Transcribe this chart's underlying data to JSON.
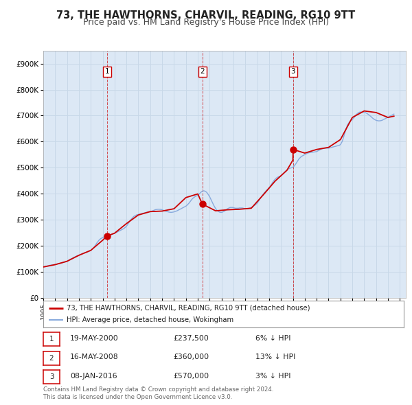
{
  "title": "73, THE HAWTHORNS, CHARVIL, READING, RG10 9TT",
  "subtitle": "Price paid vs. HM Land Registry's House Price Index (HPI)",
  "title_fontsize": 10.5,
  "subtitle_fontsize": 9,
  "background_color": "#ffffff",
  "plot_bg_color": "#dce8f5",
  "grid_color": "#c8d8e8",
  "xmin": 1995.0,
  "xmax": 2025.5,
  "ymin": 0,
  "ymax": 950000,
  "yticks": [
    0,
    100000,
    200000,
    300000,
    400000,
    500000,
    600000,
    700000,
    800000,
    900000
  ],
  "ytick_labels": [
    "£0",
    "£100K",
    "£200K",
    "£300K",
    "£400K",
    "£500K",
    "£600K",
    "£700K",
    "£800K",
    "£900K"
  ],
  "sale_color": "#cc0000",
  "hpi_color": "#88aadd",
  "sale_label": "73, THE HAWTHORNS, CHARVIL, READING, RG10 9TT (detached house)",
  "hpi_label": "HPI: Average price, detached house, Wokingham",
  "transactions": [
    {
      "num": 1,
      "date_str": "19-MAY-2000",
      "price": 237500,
      "price_str": "£237,500",
      "pct": "6%",
      "x": 2000.38
    },
    {
      "num": 2,
      "date_str": "16-MAY-2008",
      "price": 360000,
      "price_str": "£360,000",
      "pct": "13%",
      "x": 2008.38
    },
    {
      "num": 3,
      "date_str": "08-JAN-2016",
      "price": 570000,
      "price_str": "£570,000",
      "pct": "3%",
      "x": 2016.02
    }
  ],
  "footer_line1": "Contains HM Land Registry data © Crown copyright and database right 2024.",
  "footer_line2": "This data is licensed under the Open Government Licence v3.0.",
  "hpi_data_x": [
    1995.0,
    1995.083,
    1995.167,
    1995.25,
    1995.333,
    1995.417,
    1995.5,
    1995.583,
    1995.667,
    1995.75,
    1995.833,
    1995.917,
    1996.0,
    1996.083,
    1996.167,
    1996.25,
    1996.333,
    1996.417,
    1996.5,
    1996.583,
    1996.667,
    1996.75,
    1996.833,
    1996.917,
    1997.0,
    1997.083,
    1997.167,
    1997.25,
    1997.333,
    1997.417,
    1997.5,
    1997.583,
    1997.667,
    1997.75,
    1997.833,
    1997.917,
    1998.0,
    1998.083,
    1998.167,
    1998.25,
    1998.333,
    1998.417,
    1998.5,
    1998.583,
    1998.667,
    1998.75,
    1998.833,
    1998.917,
    1999.0,
    1999.083,
    1999.167,
    1999.25,
    1999.333,
    1999.417,
    1999.5,
    1999.583,
    1999.667,
    1999.75,
    1999.833,
    1999.917,
    2000.0,
    2000.083,
    2000.167,
    2000.25,
    2000.333,
    2000.417,
    2000.5,
    2000.583,
    2000.667,
    2000.75,
    2000.833,
    2000.917,
    2001.0,
    2001.083,
    2001.167,
    2001.25,
    2001.333,
    2001.417,
    2001.5,
    2001.583,
    2001.667,
    2001.75,
    2001.833,
    2001.917,
    2002.0,
    2002.083,
    2002.167,
    2002.25,
    2002.333,
    2002.417,
    2002.5,
    2002.583,
    2002.667,
    2002.75,
    2002.833,
    2002.917,
    2003.0,
    2003.083,
    2003.167,
    2003.25,
    2003.333,
    2003.417,
    2003.5,
    2003.583,
    2003.667,
    2003.75,
    2003.833,
    2003.917,
    2004.0,
    2004.083,
    2004.167,
    2004.25,
    2004.333,
    2004.417,
    2004.5,
    2004.583,
    2004.667,
    2004.75,
    2004.833,
    2004.917,
    2005.0,
    2005.083,
    2005.167,
    2005.25,
    2005.333,
    2005.417,
    2005.5,
    2005.583,
    2005.667,
    2005.75,
    2005.833,
    2005.917,
    2006.0,
    2006.083,
    2006.167,
    2006.25,
    2006.333,
    2006.417,
    2006.5,
    2006.583,
    2006.667,
    2006.75,
    2006.833,
    2006.917,
    2007.0,
    2007.083,
    2007.167,
    2007.25,
    2007.333,
    2007.417,
    2007.5,
    2007.583,
    2007.667,
    2007.75,
    2007.833,
    2007.917,
    2008.0,
    2008.083,
    2008.167,
    2008.25,
    2008.333,
    2008.417,
    2008.5,
    2008.583,
    2008.667,
    2008.75,
    2008.833,
    2008.917,
    2009.0,
    2009.083,
    2009.167,
    2009.25,
    2009.333,
    2009.417,
    2009.5,
    2009.583,
    2009.667,
    2009.75,
    2009.833,
    2009.917,
    2010.0,
    2010.083,
    2010.167,
    2010.25,
    2010.333,
    2010.417,
    2010.5,
    2010.583,
    2010.667,
    2010.75,
    2010.833,
    2010.917,
    2011.0,
    2011.083,
    2011.167,
    2011.25,
    2011.333,
    2011.417,
    2011.5,
    2011.583,
    2011.667,
    2011.75,
    2011.833,
    2011.917,
    2012.0,
    2012.083,
    2012.167,
    2012.25,
    2012.333,
    2012.417,
    2012.5,
    2012.583,
    2012.667,
    2012.75,
    2012.833,
    2012.917,
    2013.0,
    2013.083,
    2013.167,
    2013.25,
    2013.333,
    2013.417,
    2013.5,
    2013.583,
    2013.667,
    2013.75,
    2013.833,
    2013.917,
    2014.0,
    2014.083,
    2014.167,
    2014.25,
    2014.333,
    2014.417,
    2014.5,
    2014.583,
    2014.667,
    2014.75,
    2014.833,
    2014.917,
    2015.0,
    2015.083,
    2015.167,
    2015.25,
    2015.333,
    2015.417,
    2015.5,
    2015.583,
    2015.667,
    2015.75,
    2015.833,
    2015.917,
    2016.0,
    2016.083,
    2016.167,
    2016.25,
    2016.333,
    2016.417,
    2016.5,
    2016.583,
    2016.667,
    2016.75,
    2016.833,
    2016.917,
    2017.0,
    2017.083,
    2017.167,
    2017.25,
    2017.333,
    2017.417,
    2017.5,
    2017.583,
    2017.667,
    2017.75,
    2017.833,
    2017.917,
    2018.0,
    2018.083,
    2018.167,
    2018.25,
    2018.333,
    2018.417,
    2018.5,
    2018.583,
    2018.667,
    2018.75,
    2018.833,
    2018.917,
    2019.0,
    2019.083,
    2019.167,
    2019.25,
    2019.333,
    2019.417,
    2019.5,
    2019.583,
    2019.667,
    2019.75,
    2019.833,
    2019.917,
    2020.0,
    2020.083,
    2020.167,
    2020.25,
    2020.333,
    2020.417,
    2020.5,
    2020.583,
    2020.667,
    2020.75,
    2020.833,
    2020.917,
    2021.0,
    2021.083,
    2021.167,
    2021.25,
    2021.333,
    2021.417,
    2021.5,
    2021.583,
    2021.667,
    2021.75,
    2021.833,
    2021.917,
    2022.0,
    2022.083,
    2022.167,
    2022.25,
    2022.333,
    2022.417,
    2022.5,
    2022.583,
    2022.667,
    2022.75,
    2022.833,
    2022.917,
    2023.0,
    2023.083,
    2023.167,
    2023.25,
    2023.333,
    2023.417,
    2023.5,
    2023.583,
    2023.667,
    2023.75,
    2023.833,
    2023.917,
    2024.0,
    2024.083,
    2024.167,
    2024.25,
    2024.333,
    2024.417,
    2024.5
  ],
  "hpi_data_y": [
    118000,
    119000,
    120000,
    121000,
    122000,
    123000,
    124000,
    125000,
    125500,
    126000,
    126500,
    127000,
    127500,
    128500,
    129500,
    130500,
    131500,
    132500,
    133500,
    134000,
    135000,
    136000,
    137000,
    138500,
    140000,
    142000,
    144500,
    147000,
    149500,
    151000,
    153000,
    155000,
    157000,
    159000,
    160500,
    161500,
    163000,
    165000,
    167000,
    168500,
    170000,
    171500,
    173000,
    174000,
    175000,
    176500,
    178000,
    180000,
    182000,
    185000,
    189000,
    193000,
    198000,
    204000,
    210000,
    215000,
    220000,
    224000,
    227000,
    229000,
    231000,
    233000,
    235000,
    237000,
    238500,
    239500,
    240500,
    241000,
    242000,
    243000,
    244000,
    246000,
    248000,
    249500,
    251000,
    253000,
    255000,
    257000,
    259000,
    261000,
    263000,
    265000,
    268000,
    271000,
    275000,
    280000,
    286000,
    292000,
    298000,
    303000,
    307000,
    311000,
    314000,
    316000,
    318000,
    319000,
    320000,
    321000,
    322000,
    323000,
    324000,
    325000,
    326000,
    327000,
    328000,
    329000,
    330000,
    330500,
    331000,
    332000,
    333500,
    335000,
    336500,
    338000,
    339000,
    339500,
    340000,
    340000,
    339500,
    339000,
    338000,
    336500,
    335000,
    333500,
    332000,
    331000,
    330000,
    329000,
    328500,
    328000,
    328500,
    329000,
    330000,
    331000,
    332500,
    334000,
    336000,
    338000,
    340000,
    342000,
    344000,
    346000,
    348000,
    350000,
    352000,
    355000,
    359000,
    363000,
    368000,
    373000,
    378000,
    382000,
    385000,
    388000,
    390000,
    392000,
    394000,
    397000,
    401000,
    405000,
    408000,
    410000,
    411000,
    410000,
    408000,
    405000,
    400000,
    394000,
    388000,
    380000,
    372000,
    364000,
    356000,
    349000,
    343000,
    338000,
    334000,
    331000,
    329000,
    328000,
    328000,
    329000,
    331000,
    333000,
    336000,
    339000,
    342000,
    344000,
    346000,
    347000,
    347000,
    347000,
    346000,
    345000,
    344000,
    344000,
    344000,
    344000,
    345000,
    345000,
    345000,
    345000,
    344000,
    343000,
    342000,
    342000,
    342000,
    343000,
    344000,
    345000,
    347000,
    349000,
    351000,
    354000,
    357000,
    360000,
    364000,
    369000,
    375000,
    381000,
    387000,
    393000,
    398000,
    403000,
    407000,
    411000,
    415000,
    419000,
    423000,
    428000,
    434000,
    440000,
    446000,
    451000,
    455000,
    459000,
    462000,
    464000,
    466000,
    467000,
    469000,
    472000,
    476000,
    480000,
    484000,
    488000,
    491000,
    494000,
    496000,
    498000,
    499000,
    500000,
    502000,
    505000,
    510000,
    515000,
    521000,
    527000,
    533000,
    537000,
    541000,
    544000,
    546000,
    548000,
    550000,
    552000,
    554000,
    556000,
    557000,
    558000,
    558500,
    559000,
    559500,
    560000,
    560500,
    561000,
    562000,
    564000,
    566000,
    568000,
    570000,
    572000,
    573000,
    574000,
    574500,
    575000,
    575000,
    575000,
    575000,
    576000,
    577000,
    578000,
    579000,
    580000,
    581000,
    582000,
    583000,
    584000,
    585000,
    586000,
    589000,
    595000,
    603000,
    615000,
    628000,
    641000,
    653000,
    663000,
    670000,
    675000,
    679000,
    682000,
    685000,
    689000,
    694000,
    699000,
    704000,
    708000,
    711000,
    713000,
    714000,
    714000,
    714000,
    714000,
    713000,
    712000,
    710000,
    708000,
    705000,
    702000,
    699000,
    696000,
    692000,
    689000,
    686000,
    684000,
    682000,
    681000,
    680000,
    680000,
    680000,
    681000,
    682000,
    684000,
    686000,
    688000,
    690000,
    692000,
    694000,
    696000,
    698000,
    700000,
    702000,
    704000,
    706000
  ],
  "sale_data_x": [
    1995.0,
    1996.0,
    1997.0,
    1998.0,
    1999.0,
    2000.0,
    2000.38,
    2001.0,
    2002.0,
    2003.0,
    2004.0,
    2005.0,
    2006.0,
    2007.0,
    2008.0,
    2008.38,
    2009.5,
    2010.5,
    2011.5,
    2012.5,
    2013.5,
    2014.5,
    2015.5,
    2016.0,
    2016.02,
    2017.0,
    2018.0,
    2019.0,
    2020.0,
    2021.0,
    2022.0,
    2023.0,
    2024.0,
    2024.5
  ],
  "sale_data_y": [
    118000,
    127000,
    140000,
    163000,
    182000,
    221000,
    237500,
    248000,
    285000,
    318000,
    331000,
    333000,
    342000,
    385000,
    399000,
    360000,
    334000,
    338000,
    340000,
    344000,
    395000,
    448000,
    490000,
    529000,
    570000,
    556000,
    570000,
    578000,
    608000,
    693000,
    718000,
    712000,
    693000,
    698000
  ]
}
